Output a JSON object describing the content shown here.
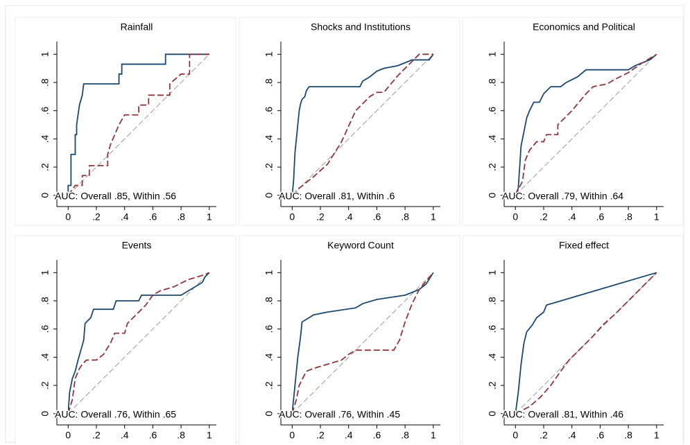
{
  "chart_data": [
    {
      "type": "line",
      "title": "Rainfall",
      "annotation": "AUC: Overall .85, Within .56",
      "xlim": [
        -0.08,
        1.05
      ],
      "ylim": [
        -0.08,
        1.09
      ],
      "xticks": [
        0,
        {
          "value": 0.2,
          "label": ".2"
        },
        {
          "value": 0.4,
          "label": ".4"
        },
        {
          "value": 0.6,
          "label": ".6"
        },
        {
          "value": 0.8,
          "label": ".8"
        },
        1
      ],
      "yticks": [
        0,
        {
          "value": 0.2,
          "label": ".2"
        },
        {
          "value": 0.4,
          "label": ".4"
        },
        {
          "value": 0.6,
          "label": ".6"
        },
        {
          "value": 0.8,
          "label": ".8"
        },
        1
      ],
      "series": [
        {
          "color": "#1a476f",
          "line_style": "solid",
          "x": [
            0,
            0,
            0.02,
            0.02,
            0.05,
            0.05,
            0.06,
            0.06,
            0.07,
            0.08,
            0.1,
            0.11,
            0.36,
            0.36,
            0.38,
            0.38,
            0.69,
            0.69,
            1
          ],
          "values": [
            0,
            0.07,
            0.07,
            0.29,
            0.29,
            0.43,
            0.43,
            0.5,
            0.57,
            0.64,
            0.71,
            0.79,
            0.79,
            0.86,
            0.86,
            0.93,
            0.93,
            1,
            1
          ]
        },
        {
          "color": "#90353b",
          "line_style": "dashed",
          "x": [
            0,
            0.05,
            0.1,
            0.1,
            0.15,
            0.15,
            0.28,
            0.28,
            0.3,
            0.33,
            0.36,
            0.4,
            0.5,
            0.5,
            0.57,
            0.57,
            0.72,
            0.72,
            0.8,
            0.86,
            0.86,
            1
          ],
          "values": [
            0,
            0.07,
            0.07,
            0.14,
            0.14,
            0.21,
            0.21,
            0.29,
            0.36,
            0.43,
            0.5,
            0.57,
            0.57,
            0.64,
            0.64,
            0.71,
            0.71,
            0.79,
            0.86,
            0.86,
            1,
            1
          ]
        }
      ]
    },
    {
      "type": "line",
      "title": "Shocks and Institutions",
      "annotation": "AUC: Overall .81, Within .6",
      "xlim": [
        -0.08,
        1.05
      ],
      "ylim": [
        -0.08,
        1.09
      ],
      "xticks": [
        0,
        {
          "value": 0.2,
          "label": ".2"
        },
        {
          "value": 0.4,
          "label": ".4"
        },
        {
          "value": 0.6,
          "label": ".6"
        },
        {
          "value": 0.8,
          "label": ".8"
        },
        1
      ],
      "yticks": [
        0,
        {
          "value": 0.2,
          "label": ".2"
        },
        {
          "value": 0.4,
          "label": ".4"
        },
        {
          "value": 0.6,
          "label": ".6"
        },
        {
          "value": 0.8,
          "label": ".8"
        },
        1
      ],
      "series": [
        {
          "color": "#1a476f",
          "line_style": "solid",
          "x": [
            0,
            0.01,
            0.02,
            0.03,
            0.04,
            0.05,
            0.06,
            0.07,
            0.09,
            0.1,
            0.12,
            0.48,
            0.5,
            0.55,
            0.6,
            0.65,
            0.75,
            0.8,
            0.85,
            0.97,
            1
          ],
          "values": [
            0,
            0.1,
            0.3,
            0.4,
            0.5,
            0.6,
            0.65,
            0.68,
            0.7,
            0.74,
            0.77,
            0.77,
            0.81,
            0.84,
            0.88,
            0.9,
            0.92,
            0.94,
            0.96,
            0.96,
            1
          ]
        },
        {
          "color": "#90353b",
          "line_style": "dashed",
          "x": [
            0,
            0.05,
            0.15,
            0.25,
            0.35,
            0.45,
            0.55,
            0.6,
            0.65,
            0.75,
            0.85,
            0.9,
            1
          ],
          "values": [
            0,
            0.05,
            0.13,
            0.22,
            0.38,
            0.6,
            0.7,
            0.73,
            0.73,
            0.85,
            0.95,
            1,
            1
          ]
        }
      ]
    },
    {
      "type": "line",
      "title": "Economics and Political",
      "annotation": "AUC: Overall .79, Within .64",
      "xlim": [
        -0.08,
        1.05
      ],
      "ylim": [
        -0.08,
        1.09
      ],
      "xticks": [
        0,
        {
          "value": 0.2,
          "label": ".2"
        },
        {
          "value": 0.4,
          "label": ".4"
        },
        {
          "value": 0.6,
          "label": ".6"
        },
        {
          "value": 0.8,
          "label": ".8"
        },
        1
      ],
      "yticks": [
        0,
        {
          "value": 0.2,
          "label": ".2"
        },
        {
          "value": 0.4,
          "label": ".4"
        },
        {
          "value": 0.6,
          "label": ".6"
        },
        {
          "value": 0.8,
          "label": ".8"
        },
        1
      ],
      "series": [
        {
          "color": "#1a476f",
          "line_style": "solid",
          "x": [
            0,
            0.02,
            0.03,
            0.04,
            0.06,
            0.08,
            0.1,
            0.13,
            0.17,
            0.2,
            0.25,
            0.32,
            0.36,
            0.44,
            0.5,
            0.8,
            0.85,
            0.9,
            0.95,
            1
          ],
          "values": [
            0,
            0.05,
            0.2,
            0.35,
            0.45,
            0.55,
            0.6,
            0.66,
            0.66,
            0.72,
            0.77,
            0.77,
            0.8,
            0.84,
            0.89,
            0.89,
            0.92,
            0.94,
            0.96,
            1
          ]
        },
        {
          "color": "#90353b",
          "line_style": "dashed",
          "x": [
            0,
            0.05,
            0.07,
            0.1,
            0.15,
            0.2,
            0.22,
            0.3,
            0.3,
            0.35,
            0.4,
            0.45,
            0.5,
            0.55,
            0.65,
            0.7,
            0.8,
            0.9,
            1
          ],
          "values": [
            0,
            0.1,
            0.25,
            0.32,
            0.38,
            0.38,
            0.43,
            0.43,
            0.5,
            0.55,
            0.6,
            0.66,
            0.72,
            0.77,
            0.79,
            0.82,
            0.87,
            0.94,
            1
          ]
        }
      ]
    },
    {
      "type": "line",
      "title": "Events",
      "annotation": "AUC: Overall .76, Within .65",
      "xlim": [
        -0.08,
        1.05
      ],
      "ylim": [
        -0.08,
        1.09
      ],
      "xticks": [
        0,
        {
          "value": 0.2,
          "label": ".2"
        },
        {
          "value": 0.4,
          "label": ".4"
        },
        {
          "value": 0.6,
          "label": ".6"
        },
        {
          "value": 0.8,
          "label": ".8"
        },
        1
      ],
      "yticks": [
        0,
        {
          "value": 0.2,
          "label": ".2"
        },
        {
          "value": 0.4,
          "label": ".4"
        },
        {
          "value": 0.6,
          "label": ".6"
        },
        {
          "value": 0.8,
          "label": ".8"
        },
        1
      ],
      "series": [
        {
          "color": "#1a476f",
          "line_style": "solid",
          "x": [
            0,
            0.01,
            0.03,
            0.05,
            0.07,
            0.09,
            0.11,
            0.12,
            0.16,
            0.18,
            0.32,
            0.34,
            0.5,
            0.52,
            0.8,
            0.85,
            0.9,
            0.95,
            0.97,
            1
          ],
          "values": [
            0,
            0.15,
            0.25,
            0.3,
            0.38,
            0.45,
            0.52,
            0.64,
            0.68,
            0.74,
            0.74,
            0.8,
            0.8,
            0.84,
            0.84,
            0.87,
            0.9,
            0.93,
            0.97,
            1
          ]
        },
        {
          "color": "#90353b",
          "line_style": "dashed",
          "x": [
            0,
            0.03,
            0.05,
            0.08,
            0.1,
            0.13,
            0.2,
            0.25,
            0.3,
            0.33,
            0.4,
            0.42,
            0.48,
            0.55,
            0.6,
            0.65,
            0.75,
            0.85,
            0.95,
            1
          ],
          "values": [
            0,
            0.1,
            0.25,
            0.32,
            0.35,
            0.38,
            0.38,
            0.42,
            0.5,
            0.57,
            0.57,
            0.64,
            0.7,
            0.77,
            0.84,
            0.87,
            0.9,
            0.95,
            0.98,
            1
          ]
        }
      ]
    },
    {
      "type": "line",
      "title": "Keyword Count",
      "annotation": "AUC: Overall .76, Within .45",
      "xlim": [
        -0.08,
        1.05
      ],
      "ylim": [
        -0.08,
        1.09
      ],
      "xticks": [
        0,
        {
          "value": 0.2,
          "label": ".2"
        },
        {
          "value": 0.4,
          "label": ".4"
        },
        {
          "value": 0.6,
          "label": ".6"
        },
        {
          "value": 0.8,
          "label": ".8"
        },
        1
      ],
      "yticks": [
        0,
        {
          "value": 0.2,
          "label": ".2"
        },
        {
          "value": 0.4,
          "label": ".4"
        },
        {
          "value": 0.6,
          "label": ".6"
        },
        {
          "value": 0.8,
          "label": ".8"
        },
        1
      ],
      "series": [
        {
          "color": "#1a476f",
          "line_style": "solid",
          "x": [
            0,
            0.02,
            0.04,
            0.06,
            0.07,
            0.12,
            0.15,
            0.25,
            0.45,
            0.5,
            0.6,
            0.8,
            0.9,
            0.95,
            1
          ],
          "values": [
            0,
            0.2,
            0.4,
            0.55,
            0.65,
            0.68,
            0.7,
            0.72,
            0.75,
            0.78,
            0.81,
            0.84,
            0.88,
            0.92,
            1
          ]
        },
        {
          "color": "#90353b",
          "line_style": "dashed",
          "x": [
            0,
            0.03,
            0.05,
            0.1,
            0.15,
            0.25,
            0.35,
            0.4,
            0.45,
            0.72,
            0.76,
            0.8,
            0.85,
            0.9,
            0.95,
            1
          ],
          "values": [
            0,
            0.1,
            0.2,
            0.3,
            0.32,
            0.35,
            0.38,
            0.42,
            0.45,
            0.45,
            0.52,
            0.65,
            0.78,
            0.88,
            0.94,
            1
          ]
        }
      ]
    },
    {
      "type": "line",
      "title": "Fixed effect",
      "annotation": "AUC: Overall .81, Within .46",
      "xlim": [
        -0.08,
        1.05
      ],
      "ylim": [
        -0.08,
        1.09
      ],
      "xticks": [
        0,
        {
          "value": 0.2,
          "label": ".2"
        },
        {
          "value": 0.4,
          "label": ".4"
        },
        {
          "value": 0.6,
          "label": ".6"
        },
        {
          "value": 0.8,
          "label": ".8"
        },
        1
      ],
      "yticks": [
        0,
        {
          "value": 0.2,
          "label": ".2"
        },
        {
          "value": 0.4,
          "label": ".4"
        },
        {
          "value": 0.6,
          "label": ".6"
        },
        {
          "value": 0.8,
          "label": ".8"
        },
        1
      ],
      "series": [
        {
          "color": "#1a476f",
          "line_style": "solid",
          "x": [
            0,
            0.02,
            0.04,
            0.06,
            0.08,
            0.12,
            0.15,
            0.2,
            0.22,
            1
          ],
          "values": [
            0,
            0.15,
            0.35,
            0.5,
            0.58,
            0.63,
            0.68,
            0.72,
            0.77,
            1
          ]
        },
        {
          "color": "#90353b",
          "line_style": "dashed",
          "x": [
            0,
            0.1,
            0.18,
            0.25,
            0.32,
            0.38,
            0.45,
            0.55,
            0.62,
            0.7,
            0.8,
            0.9,
            1
          ],
          "values": [
            0,
            0.05,
            0.12,
            0.2,
            0.3,
            0.38,
            0.45,
            0.55,
            0.63,
            0.7,
            0.8,
            0.9,
            1
          ]
        }
      ]
    }
  ]
}
